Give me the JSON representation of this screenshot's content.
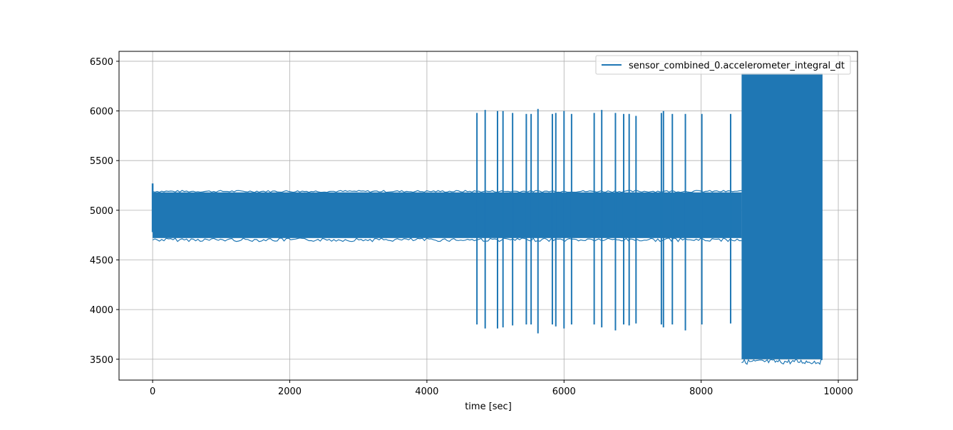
{
  "chart_data": {
    "type": "line",
    "title": "",
    "xlabel": "time [sec]",
    "ylabel": "",
    "xlim": [
      -490,
      10280
    ],
    "ylim": [
      3290,
      6600
    ],
    "xticks": [
      0,
      2000,
      4000,
      6000,
      8000,
      10000
    ],
    "yticks": [
      3500,
      4000,
      4500,
      5000,
      5500,
      6000,
      6500
    ],
    "xtick_labels": [
      "0",
      "2000",
      "4000",
      "6000",
      "8000",
      "10000"
    ],
    "ytick_labels": [
      "3500",
      "4000",
      "4500",
      "5000",
      "5500",
      "6000",
      "6500"
    ],
    "grid": true,
    "legend_position": "top-right",
    "series": [
      {
        "name": "sensor_combined_0.accelerometer_integral_dt",
        "color": "#1f77b4",
        "bands": [
          {
            "x0": 0,
            "x1": 8590,
            "ymin": 4720,
            "ymax": 5180
          },
          {
            "x0": 8590,
            "x1": 9770,
            "ymin": 3500,
            "ymax": 6380
          }
        ],
        "start_spike": {
          "x": 0,
          "ymin": 4780,
          "ymax": 5270
        },
        "spikes": [
          {
            "x": 4730,
            "ymin": 3850,
            "ymax": 5980
          },
          {
            "x": 4850,
            "ymin": 3810,
            "ymax": 6010
          },
          {
            "x": 5030,
            "ymin": 3810,
            "ymax": 6000
          },
          {
            "x": 5110,
            "ymin": 3820,
            "ymax": 6000
          },
          {
            "x": 5250,
            "ymin": 3840,
            "ymax": 5980
          },
          {
            "x": 5450,
            "ymin": 3850,
            "ymax": 5970
          },
          {
            "x": 5520,
            "ymin": 3850,
            "ymax": 5970
          },
          {
            "x": 5620,
            "ymin": 3760,
            "ymax": 6020
          },
          {
            "x": 5830,
            "ymin": 3850,
            "ymax": 5970
          },
          {
            "x": 5880,
            "ymin": 3830,
            "ymax": 5980
          },
          {
            "x": 6000,
            "ymin": 3810,
            "ymax": 6000
          },
          {
            "x": 6110,
            "ymin": 3850,
            "ymax": 5970
          },
          {
            "x": 6440,
            "ymin": 3850,
            "ymax": 5980
          },
          {
            "x": 6550,
            "ymin": 3820,
            "ymax": 6010
          },
          {
            "x": 6750,
            "ymin": 3790,
            "ymax": 5980
          },
          {
            "x": 6870,
            "ymin": 3850,
            "ymax": 5970
          },
          {
            "x": 6950,
            "ymin": 3840,
            "ymax": 5970
          },
          {
            "x": 7050,
            "ymin": 3860,
            "ymax": 5950
          },
          {
            "x": 7420,
            "ymin": 3850,
            "ymax": 5980
          },
          {
            "x": 7450,
            "ymin": 3820,
            "ymax": 6000
          },
          {
            "x": 7580,
            "ymin": 3850,
            "ymax": 5970
          },
          {
            "x": 7770,
            "ymin": 3790,
            "ymax": 5970
          },
          {
            "x": 8010,
            "ymin": 3850,
            "ymax": 5970
          },
          {
            "x": 8430,
            "ymin": 3860,
            "ymax": 5970
          }
        ]
      }
    ]
  }
}
